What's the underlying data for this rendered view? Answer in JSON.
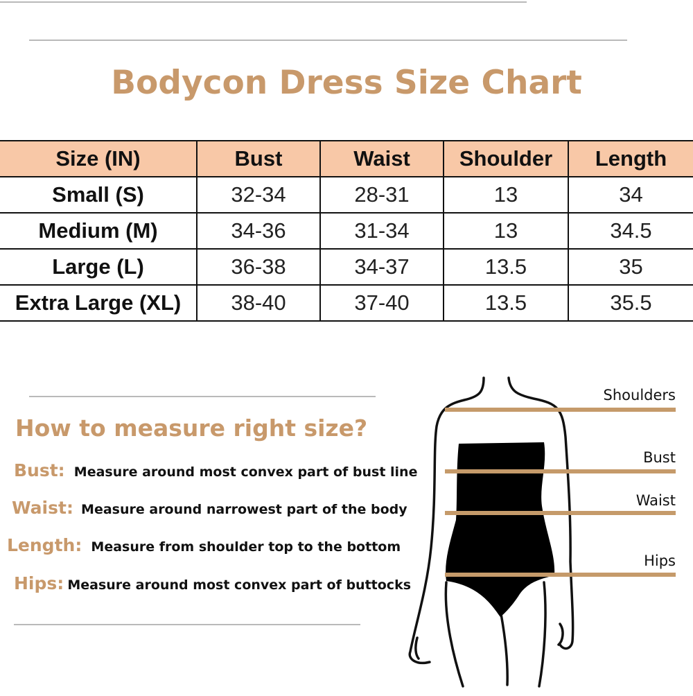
{
  "title": "Bodycon Dress Size Chart",
  "table": {
    "headers": [
      "Size (IN)",
      "Bust",
      "Waist",
      "Shoulder",
      "Length"
    ],
    "rows": [
      [
        "Small (S)",
        "32-34",
        "28-31",
        "13",
        "34"
      ],
      [
        "Medium (M)",
        "34-36",
        "31-34",
        "13",
        "34.5"
      ],
      [
        "Large (L)",
        "36-38",
        "34-37",
        "13.5",
        "35"
      ],
      [
        "Extra Large (XL)",
        "38-40",
        "37-40",
        "13.5",
        "35.5"
      ]
    ]
  },
  "measure": {
    "heading": "How to measure right size?",
    "items": [
      {
        "label": "Bust:",
        "desc": "Measure around most convex part of bust line"
      },
      {
        "label": "Waist:",
        "desc": "Measure around narrowest part of the body"
      },
      {
        "label": "Length:",
        "desc": "Measure from shoulder top to the bottom"
      },
      {
        "label": "Hips:",
        "desc": "Measure around most convex part of  buttocks"
      }
    ]
  },
  "figure": {
    "labels": [
      "Shoulders",
      "Bust",
      "Waist",
      "Hips"
    ]
  },
  "colors": {
    "accent": "#c8996b",
    "header_bg": "#f8c8a7",
    "measure_line": "#c59a6a"
  }
}
